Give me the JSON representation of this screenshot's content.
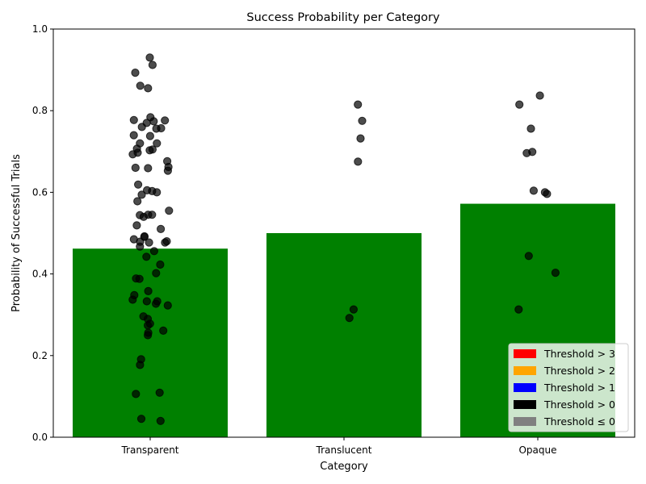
{
  "chart_data": {
    "type": "bar",
    "title": "Success Probability per Category",
    "xlabel": "Category",
    "ylabel": "Probability of Successful Trials",
    "ylim": [
      0,
      1
    ],
    "yticks": [
      "0.0",
      "0.2",
      "0.4",
      "0.6",
      "0.8",
      "1.0"
    ],
    "categories": [
      "Transparent",
      "Translucent",
      "Opaque"
    ],
    "values": [
      0.462,
      0.5,
      0.572
    ],
    "bar_color": "#008000",
    "point_color": "#000000",
    "points": [
      [
        0.93,
        0.912,
        0.893,
        0.861,
        0.855,
        0.784,
        0.777,
        0.776,
        0.774,
        0.77,
        0.76,
        0.757,
        0.756,
        0.74,
        0.738,
        0.72,
        0.72,
        0.707,
        0.705,
        0.703,
        0.697,
        0.693,
        0.676,
        0.662,
        0.66,
        0.659,
        0.653,
        0.619,
        0.605,
        0.603,
        0.6,
        0.594,
        0.578,
        0.555,
        0.545,
        0.544,
        0.545,
        0.54,
        0.519,
        0.51,
        0.492,
        0.491,
        0.485,
        0.48,
        0.479,
        0.477,
        0.477,
        0.467,
        0.456,
        0.442,
        0.423,
        0.402,
        0.389,
        0.388,
        0.358,
        0.348,
        0.337,
        0.333,
        0.333,
        0.327,
        0.323,
        0.296,
        0.29,
        0.278,
        0.274,
        0.261,
        0.256,
        0.25,
        0.191,
        0.177,
        0.109,
        0.106,
        0.045,
        0.04
      ],
      [
        0.815,
        0.775,
        0.732,
        0.675,
        0.313,
        0.292
      ],
      [
        0.837,
        0.815,
        0.756,
        0.699,
        0.696,
        0.604,
        0.6,
        0.596,
        0.444,
        0.403,
        0.313
      ]
    ],
    "legend": {
      "placement": "lower-right",
      "entries": [
        {
          "label": "Threshold > 3",
          "color": "#ff0000"
        },
        {
          "label": "Threshold > 2",
          "color": "#ffa500"
        },
        {
          "label": "Threshold > 1",
          "color": "#0000ff"
        },
        {
          "label": "Threshold > 0",
          "color": "#000000"
        },
        {
          "label": "Threshold ≤ 0",
          "color": "#808080"
        }
      ]
    }
  }
}
